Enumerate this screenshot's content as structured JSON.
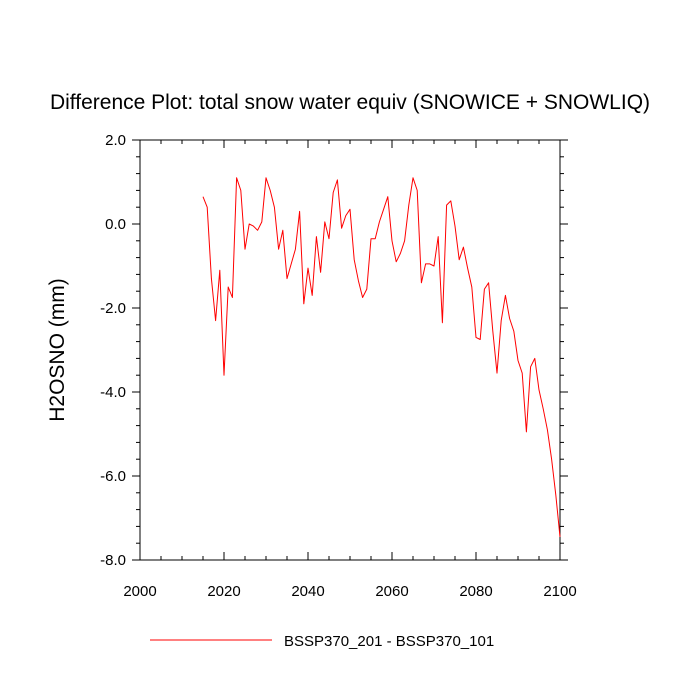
{
  "chart_data": {
    "type": "line",
    "title": "Difference Plot: total snow water equiv (SNOWICE + SNOWLIQ)",
    "xlabel": "",
    "ylabel": "H2OSNO  (mm)",
    "xlim": [
      2000,
      2100
    ],
    "ylim": [
      -8.0,
      2.0
    ],
    "xticks": [
      2000,
      2020,
      2040,
      2060,
      2080,
      2100
    ],
    "xtick_labels": [
      "2000",
      "2020",
      "2040",
      "2060",
      "2080",
      "2100"
    ],
    "yticks": [
      2.0,
      0.0,
      -2.0,
      -4.0,
      -6.0,
      -8.0
    ],
    "ytick_labels": [
      "2.0",
      "0.0",
      "-2.0",
      "-4.0",
      "-6.0",
      "-8.0"
    ],
    "grid": false,
    "legend_position": "bottom-center",
    "series": [
      {
        "name": "BSSP370_201 - BSSP370_101",
        "color": "#ff0000",
        "x": [
          2015,
          2016,
          2017,
          2018,
          2019,
          2020,
          2021,
          2022,
          2023,
          2024,
          2025,
          2026,
          2027,
          2028,
          2029,
          2030,
          2031,
          2032,
          2033,
          2034,
          2035,
          2036,
          2037,
          2038,
          2039,
          2040,
          2041,
          2042,
          2043,
          2044,
          2045,
          2046,
          2047,
          2048,
          2049,
          2050,
          2051,
          2052,
          2053,
          2054,
          2055,
          2056,
          2057,
          2058,
          2059,
          2060,
          2061,
          2062,
          2063,
          2064,
          2065,
          2066,
          2067,
          2068,
          2069,
          2070,
          2071,
          2072,
          2073,
          2074,
          2075,
          2076,
          2077,
          2078,
          2079,
          2080,
          2081,
          2082,
          2083,
          2084,
          2085,
          2086,
          2087,
          2088,
          2089,
          2090,
          2091,
          2092,
          2093,
          2094,
          2095,
          2096,
          2097,
          2098,
          2099,
          2100
        ],
        "values": [
          0.65,
          0.4,
          -1.3,
          -2.3,
          -1.1,
          -3.6,
          -1.5,
          -1.75,
          1.1,
          0.8,
          -0.6,
          0.0,
          -0.05,
          -0.15,
          0.05,
          1.1,
          0.8,
          0.4,
          -0.6,
          -0.15,
          -1.3,
          -0.95,
          -0.6,
          0.3,
          -1.9,
          -1.05,
          -1.7,
          -0.3,
          -1.15,
          0.05,
          -0.35,
          0.75,
          1.05,
          -0.1,
          0.2,
          0.35,
          -0.85,
          -1.35,
          -1.75,
          -1.55,
          -0.35,
          -0.35,
          0.05,
          0.35,
          0.65,
          -0.4,
          -0.9,
          -0.7,
          -0.4,
          0.45,
          1.1,
          0.8,
          -1.4,
          -0.95,
          -0.95,
          -1.0,
          -0.3,
          -2.35,
          0.45,
          0.55,
          -0.05,
          -0.85,
          -0.55,
          -1.05,
          -1.5,
          -2.7,
          -2.75,
          -1.55,
          -1.4,
          -2.55,
          -3.55,
          -2.3,
          -1.7,
          -2.25,
          -2.55,
          -3.25,
          -3.55,
          -4.95,
          -3.4,
          -3.2,
          -3.95,
          -4.4,
          -4.9,
          -5.6,
          -6.45,
          -7.45
        ]
      }
    ]
  }
}
